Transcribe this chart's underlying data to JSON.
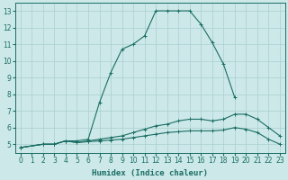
{
  "xlabel": "Humidex (Indice chaleur)",
  "ylabel": "",
  "background_color": "#cce8e8",
  "grid_color": "#aacfcf",
  "line_color": "#1a6e64",
  "xlim": [
    -0.5,
    23.5
  ],
  "ylim": [
    4.5,
    13.5
  ],
  "xticks": [
    0,
    1,
    2,
    3,
    4,
    5,
    6,
    7,
    8,
    9,
    10,
    11,
    12,
    13,
    14,
    15,
    16,
    17,
    18,
    19,
    20,
    21,
    22,
    23
  ],
  "yticks": [
    5,
    6,
    7,
    8,
    9,
    10,
    11,
    12,
    13
  ],
  "series": [
    {
      "x": [
        0,
        2,
        3,
        4,
        5,
        6,
        7,
        8,
        9,
        10,
        11,
        12,
        13,
        14,
        15,
        16,
        17,
        18,
        19
      ],
      "y": [
        4.8,
        5.0,
        5.0,
        5.2,
        5.2,
        5.3,
        7.5,
        9.3,
        10.7,
        11.0,
        11.5,
        13.0,
        13.0,
        13.0,
        13.0,
        12.2,
        11.1,
        9.8,
        7.8
      ],
      "marker": "+"
    },
    {
      "x": [
        0,
        2,
        3,
        4,
        5,
        6,
        7,
        8,
        9,
        10,
        11,
        12,
        13,
        14,
        15,
        16,
        17,
        18,
        19,
        20,
        21,
        22,
        23
      ],
      "y": [
        4.8,
        5.0,
        5.0,
        5.2,
        5.1,
        5.2,
        5.3,
        5.4,
        5.5,
        5.7,
        5.9,
        6.1,
        6.2,
        6.4,
        6.5,
        6.5,
        6.4,
        6.5,
        6.8,
        6.8,
        6.5,
        6.0,
        5.5
      ],
      "marker": "+"
    },
    {
      "x": [
        0,
        2,
        3,
        4,
        5,
        6,
        7,
        8,
        9,
        10,
        11,
        12,
        13,
        14,
        15,
        16,
        17,
        18,
        19,
        20,
        21,
        22,
        23
      ],
      "y": [
        4.8,
        5.0,
        5.0,
        5.2,
        5.1,
        5.15,
        5.2,
        5.25,
        5.3,
        5.4,
        5.5,
        5.6,
        5.7,
        5.75,
        5.8,
        5.8,
        5.8,
        5.85,
        6.0,
        5.9,
        5.7,
        5.3,
        5.0
      ],
      "marker": "+"
    }
  ]
}
